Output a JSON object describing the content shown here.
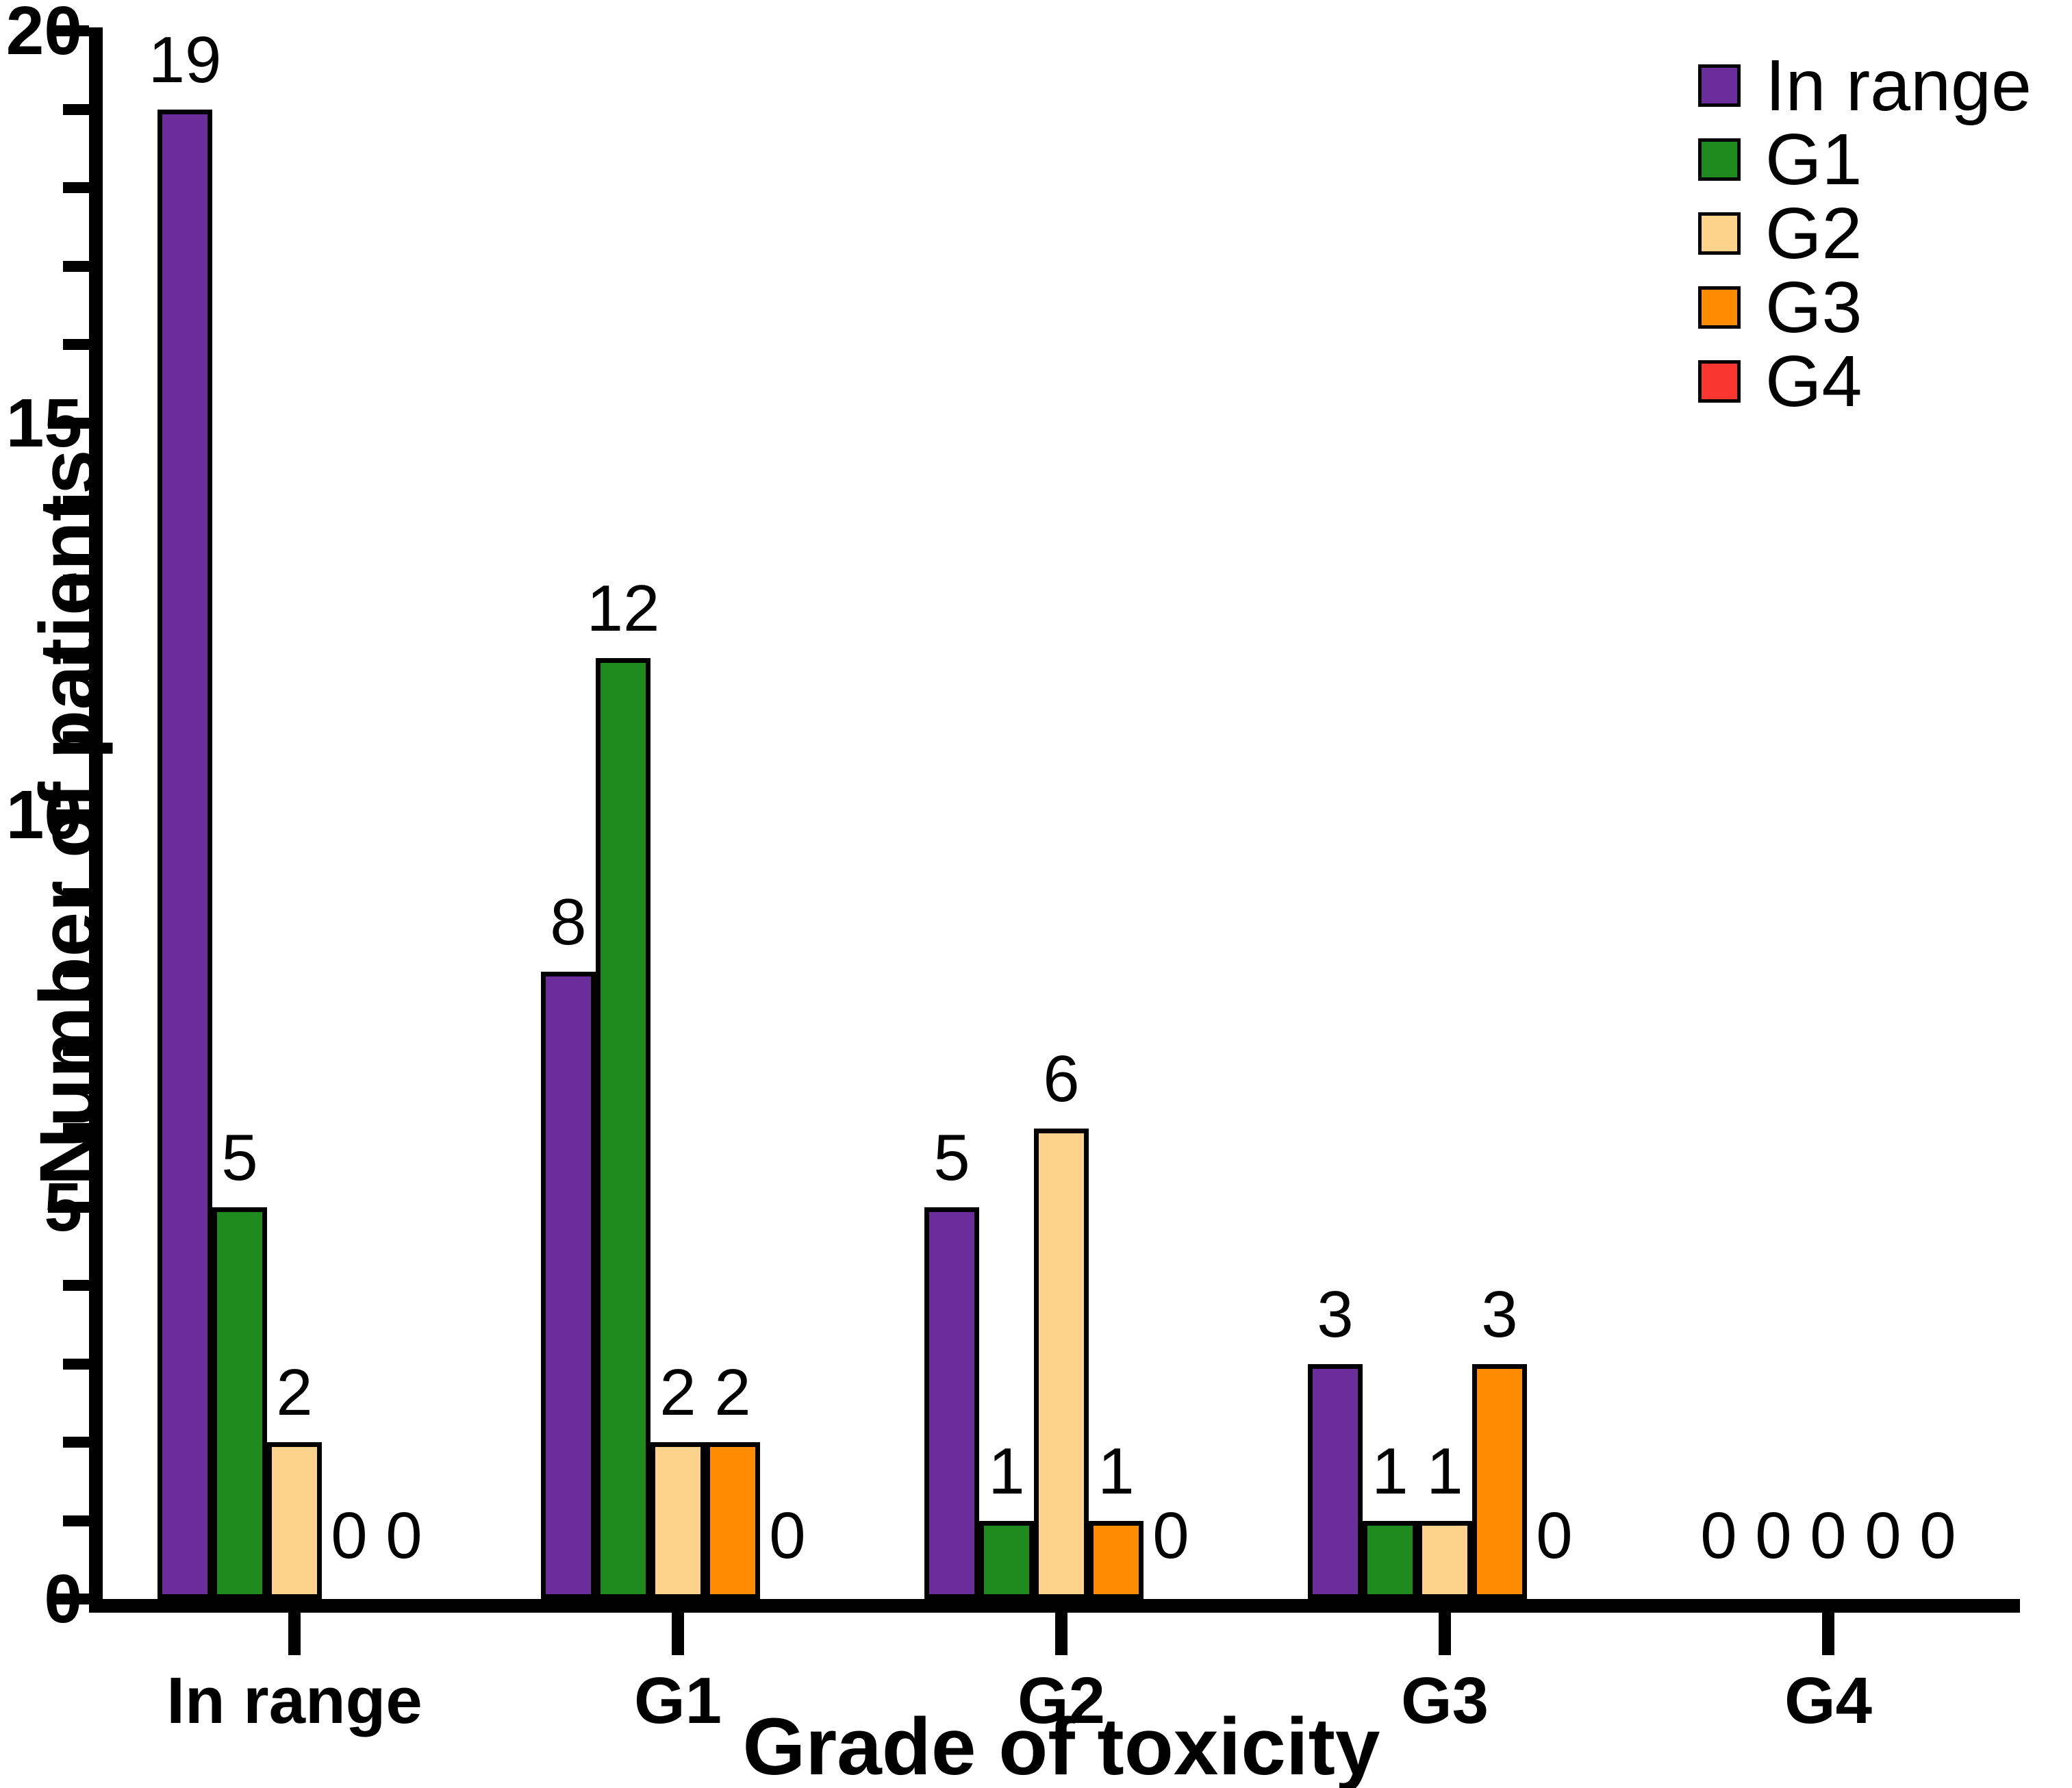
{
  "figure": {
    "background_color": "#ffffff",
    "axis_color": "#000000"
  },
  "y_axis": {
    "title": "Number of patients",
    "min": 0,
    "max": 20,
    "major_step": 5,
    "minor_step": 1,
    "tick_labels": [
      "0",
      "5",
      "10",
      "15",
      "20"
    ]
  },
  "x_axis": {
    "title": "Grade of toxicity",
    "tick_labels": [
      "In range",
      "G1",
      "G2",
      "G3",
      "G4"
    ]
  },
  "legend": {
    "position": "top-right",
    "entries": [
      {
        "label": "In range",
        "color": "#6B2D9B"
      },
      {
        "label": "G1",
        "color": "#1E8A1E"
      },
      {
        "label": "G2",
        "color": "#FDD38C"
      },
      {
        "label": "G3",
        "color": "#FF8C00"
      },
      {
        "label": "G4",
        "color": "#F9362F"
      }
    ]
  },
  "chart_data": {
    "type": "bar",
    "title": "",
    "xlabel": "Grade of toxicity",
    "ylabel": "Number of patients",
    "ylim": [
      0,
      20
    ],
    "grid": false,
    "legend_position": "top-right",
    "bar_value_labels": true,
    "categories": [
      "In range",
      "G1",
      "G2",
      "G3",
      "G4"
    ],
    "series": [
      {
        "name": "In range",
        "color": "#6B2D9B",
        "values": [
          19,
          8,
          5,
          3,
          0
        ]
      },
      {
        "name": "G1",
        "color": "#1E8A1E",
        "values": [
          5,
          12,
          1,
          1,
          0
        ]
      },
      {
        "name": "G2",
        "color": "#FDD38C",
        "values": [
          2,
          2,
          6,
          1,
          0
        ]
      },
      {
        "name": "G3",
        "color": "#FF8C00",
        "values": [
          0,
          2,
          1,
          3,
          0
        ]
      },
      {
        "name": "G4",
        "color": "#F9362F",
        "values": [
          0,
          0,
          0,
          0,
          0
        ]
      }
    ]
  }
}
